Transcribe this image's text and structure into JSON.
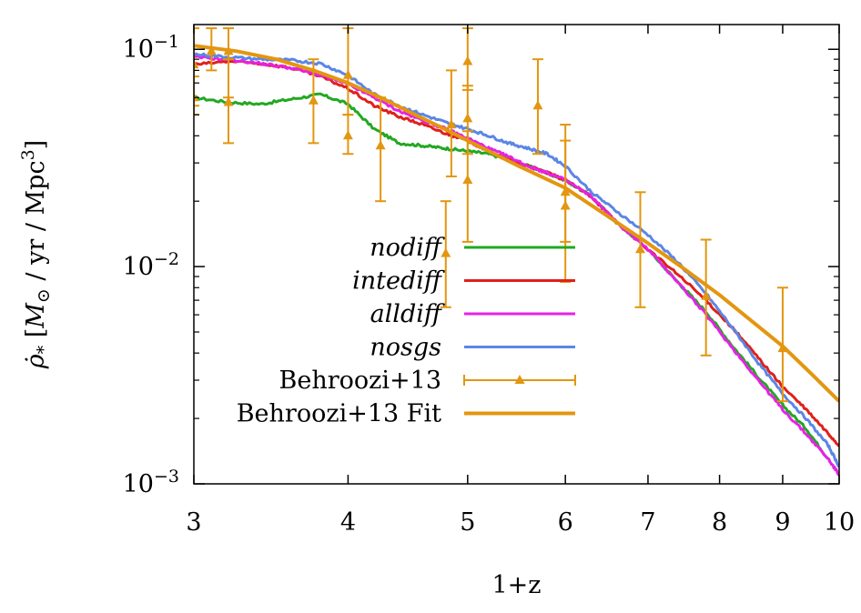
{
  "chart_data": {
    "type": "line",
    "xlabel": "1+z",
    "ylabel": "ρ̇* [M⊙ / yr / Mpc³]",
    "ylabel_parts": {
      "symbol": "ρ̇",
      "symbol_sub": "*",
      "open": "[",
      "msun": "M",
      "msun_sub": "⊙",
      "rest": " / yr / Mpc",
      "exp": "3",
      "close": "]"
    },
    "xscale": "log",
    "yscale": "log",
    "xlim": [
      3,
      10
    ],
    "ylim": [
      0.001,
      0.13
    ],
    "x_ticks": [
      {
        "value": 3,
        "label": "3"
      },
      {
        "value": 4,
        "label": "4"
      },
      {
        "value": 5,
        "label": "5"
      },
      {
        "value": 6,
        "label": "6"
      },
      {
        "value": 7,
        "label": "7"
      },
      {
        "value": 8,
        "label": "8"
      },
      {
        "value": 9,
        "label": "9"
      },
      {
        "value": 10,
        "label": "10"
      }
    ],
    "y_ticks": [
      {
        "value": 0.001,
        "base": "10",
        "exp": "−3"
      },
      {
        "value": 0.01,
        "base": "10",
        "exp": "−2"
      },
      {
        "value": 0.1,
        "base": "10",
        "exp": "−1"
      }
    ],
    "legend_position": "center",
    "series": [
      {
        "name": "nodiff",
        "italic": true,
        "color": "#22a822",
        "x": [
          3.0,
          3.2,
          3.4,
          3.6,
          3.8,
          4.0,
          4.2,
          4.4,
          4.6,
          4.8,
          5.0,
          5.2,
          5.4,
          5.6,
          5.8,
          6.0,
          6.3,
          6.6,
          7.0,
          7.4,
          7.8,
          8.2,
          8.6,
          9.0,
          9.4,
          9.8
        ],
        "y": [
          0.06,
          0.057,
          0.056,
          0.059,
          0.062,
          0.056,
          0.043,
          0.037,
          0.036,
          0.035,
          0.034,
          0.033,
          0.031,
          0.029,
          0.027,
          0.025,
          0.021,
          0.016,
          0.012,
          0.0085,
          0.0062,
          0.0043,
          0.0031,
          0.0023,
          0.0018,
          0.0013
        ]
      },
      {
        "name": "intediff",
        "italic": true,
        "color": "#e0201a",
        "x": [
          3.0,
          3.2,
          3.4,
          3.6,
          3.8,
          4.0,
          4.2,
          4.4,
          4.6,
          4.8,
          5.0,
          5.2,
          5.4,
          5.6,
          5.8,
          6.0,
          6.3,
          6.6,
          7.0,
          7.4,
          7.8,
          8.2,
          8.6,
          9.0,
          9.4,
          9.8,
          10.0
        ],
        "y": [
          0.085,
          0.088,
          0.086,
          0.082,
          0.075,
          0.066,
          0.055,
          0.049,
          0.045,
          0.041,
          0.038,
          0.034,
          0.031,
          0.029,
          0.027,
          0.025,
          0.021,
          0.016,
          0.012,
          0.0092,
          0.007,
          0.0052,
          0.0038,
          0.0028,
          0.0022,
          0.0017,
          0.0015
        ]
      },
      {
        "name": "alldiff",
        "italic": true,
        "color": "#e622e6",
        "x": [
          3.0,
          3.2,
          3.4,
          3.6,
          3.8,
          4.0,
          4.2,
          4.4,
          4.6,
          4.8,
          5.0,
          5.2,
          5.4,
          5.6,
          5.8,
          6.0,
          6.3,
          6.6,
          7.0,
          7.4,
          7.8,
          8.2,
          8.6,
          9.0,
          9.4,
          9.8,
          10.0
        ],
        "y": [
          0.092,
          0.09,
          0.086,
          0.082,
          0.076,
          0.069,
          0.06,
          0.052,
          0.047,
          0.043,
          0.039,
          0.035,
          0.032,
          0.029,
          0.027,
          0.025,
          0.021,
          0.016,
          0.012,
          0.0085,
          0.006,
          0.0042,
          0.003,
          0.0022,
          0.0017,
          0.0013,
          0.0011
        ]
      },
      {
        "name": "nosgs",
        "italic": true,
        "color": "#5b86e5",
        "x": [
          3.0,
          3.2,
          3.4,
          3.6,
          3.8,
          4.0,
          4.2,
          4.4,
          4.6,
          4.8,
          5.0,
          5.2,
          5.4,
          5.6,
          5.8,
          6.0,
          6.3,
          6.6,
          7.0,
          7.4,
          7.8,
          8.2,
          8.6,
          9.0,
          9.4,
          9.8,
          10.0
        ],
        "y": [
          0.095,
          0.092,
          0.09,
          0.089,
          0.086,
          0.076,
          0.062,
          0.055,
          0.05,
          0.046,
          0.043,
          0.04,
          0.037,
          0.035,
          0.033,
          0.029,
          0.022,
          0.018,
          0.014,
          0.0105,
          0.0075,
          0.0052,
          0.0036,
          0.0026,
          0.002,
          0.0015,
          0.0012
        ]
      },
      {
        "name": "Behroozi+13",
        "italic": false,
        "color": "#e3960f",
        "kind": "errorbar",
        "points": [
          {
            "x": 3.0,
            "y": 0.085,
            "lo": 0.055,
            "hi": 0.125
          },
          {
            "x": 3.0,
            "y": 0.06,
            "lo": 0.05,
            "hi": 0.075
          },
          {
            "x": 3.1,
            "y": 0.098,
            "lo": 0.08,
            "hi": 0.125
          },
          {
            "x": 3.2,
            "y": 0.098,
            "lo": 0.06,
            "hi": 0.125
          },
          {
            "x": 3.2,
            "y": 0.057,
            "lo": 0.037,
            "hi": 0.09
          },
          {
            "x": 3.75,
            "y": 0.058,
            "lo": 0.037,
            "hi": 0.09
          },
          {
            "x": 4.0,
            "y": 0.076,
            "lo": 0.05,
            "hi": 0.125
          },
          {
            "x": 4.0,
            "y": 0.04,
            "lo": 0.033,
            "hi": 0.05
          },
          {
            "x": 4.25,
            "y": 0.036,
            "lo": 0.02,
            "hi": 0.06
          },
          {
            "x": 4.8,
            "y": 0.0115,
            "lo": 0.0065,
            "hi": 0.02
          },
          {
            "x": 4.85,
            "y": 0.045,
            "lo": 0.026,
            "hi": 0.08
          },
          {
            "x": 5.0,
            "y": 0.088,
            "lo": 0.065,
            "hi": 0.125
          },
          {
            "x": 5.0,
            "y": 0.048,
            "lo": 0.033,
            "hi": 0.068
          },
          {
            "x": 5.0,
            "y": 0.025,
            "lo": 0.013,
            "hi": 0.042
          },
          {
            "x": 5.7,
            "y": 0.055,
            "lo": 0.033,
            "hi": 0.09
          },
          {
            "x": 6.0,
            "y": 0.022,
            "lo": 0.013,
            "hi": 0.045
          },
          {
            "x": 6.0,
            "y": 0.019,
            "lo": 0.0085,
            "hi": 0.038
          },
          {
            "x": 6.9,
            "y": 0.012,
            "lo": 0.0065,
            "hi": 0.022
          },
          {
            "x": 7.8,
            "y": 0.0073,
            "lo": 0.0039,
            "hi": 0.0133
          },
          {
            "x": 9.0,
            "y": 0.0042,
            "lo": 0.0024,
            "hi": 0.008
          }
        ]
      },
      {
        "name": "Behroozi+13 Fit",
        "italic": false,
        "color": "#e3960f",
        "x": [
          3.0,
          3.25,
          3.5,
          3.75,
          4.0,
          4.25,
          4.5,
          4.75,
          5.0,
          5.5,
          6.0,
          6.5,
          7.0,
          7.5,
          8.0,
          8.5,
          9.0,
          9.5,
          10.0
        ],
        "y": [
          0.104,
          0.098,
          0.09,
          0.08,
          0.07,
          0.06,
          0.051,
          0.044,
          0.038,
          0.029,
          0.023,
          0.017,
          0.0128,
          0.0097,
          0.0074,
          0.0056,
          0.0043,
          0.0032,
          0.0024
        ]
      }
    ]
  }
}
